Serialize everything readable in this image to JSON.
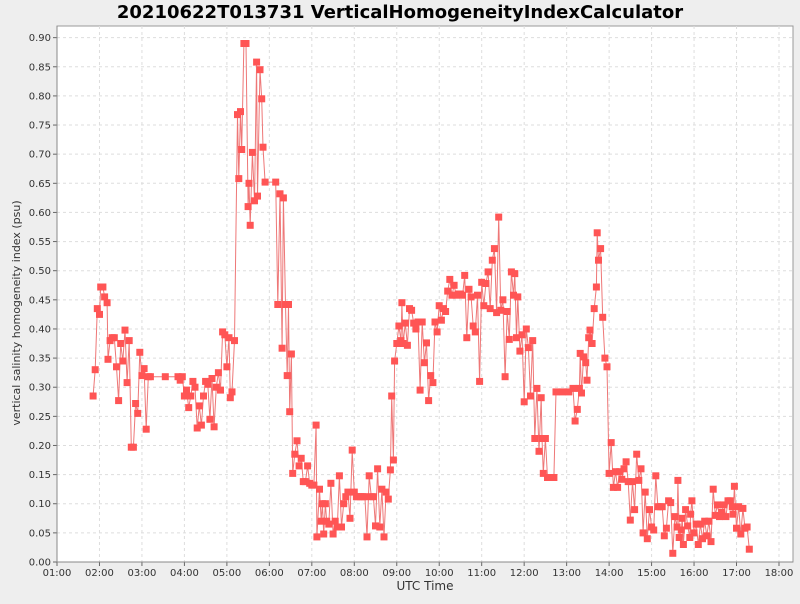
{
  "chart_data": {
    "type": "line",
    "title": "20210622T013731 VerticalHomogeneityIndexCalculator",
    "xlabel": "UTC Time",
    "ylabel": "vertical salinity homogeneity index (psu)",
    "xlim": [
      1.0,
      18.33
    ],
    "ylim": [
      0.0,
      0.92
    ],
    "grid": true,
    "x_ticks": [
      "01:00",
      "02:00",
      "03:00",
      "04:00",
      "05:00",
      "06:00",
      "07:00",
      "08:00",
      "09:00",
      "10:00",
      "11:00",
      "12:00",
      "13:00",
      "14:00",
      "15:00",
      "16:00",
      "17:00",
      "18:00"
    ],
    "y_ticks": [
      "0.00",
      "0.05",
      "0.10",
      "0.15",
      "0.20",
      "0.25",
      "0.30",
      "0.35",
      "0.40",
      "0.45",
      "0.50",
      "0.55",
      "0.60",
      "0.65",
      "0.70",
      "0.75",
      "0.80",
      "0.85",
      "0.90"
    ],
    "colors": {
      "series": "#ff5555",
      "line": "#ee7777",
      "grid": "#dddddd",
      "plot_bg": "#ffffff",
      "page_bg": "#eeeeee"
    },
    "series": [
      {
        "name": "",
        "x_unit": "hours UTC",
        "points": [
          [
            1.85,
            0.285
          ],
          [
            1.9,
            0.33
          ],
          [
            1.95,
            0.435
          ],
          [
            2.0,
            0.425
          ],
          [
            2.03,
            0.472
          ],
          [
            2.08,
            0.472
          ],
          [
            2.12,
            0.455
          ],
          [
            2.18,
            0.445
          ],
          [
            2.2,
            0.348
          ],
          [
            2.25,
            0.38
          ],
          [
            2.3,
            0.385
          ],
          [
            2.35,
            0.385
          ],
          [
            2.4,
            0.335
          ],
          [
            2.45,
            0.277
          ],
          [
            2.5,
            0.375
          ],
          [
            2.55,
            0.345
          ],
          [
            2.6,
            0.398
          ],
          [
            2.65,
            0.308
          ],
          [
            2.7,
            0.38
          ],
          [
            2.75,
            0.197
          ],
          [
            2.8,
            0.197
          ],
          [
            2.85,
            0.272
          ],
          [
            2.9,
            0.255
          ],
          [
            2.95,
            0.36
          ],
          [
            3.0,
            0.32
          ],
          [
            3.05,
            0.332
          ],
          [
            3.1,
            0.228
          ],
          [
            3.15,
            0.318
          ],
          [
            3.2,
            0.318
          ],
          [
            3.55,
            0.318
          ],
          [
            3.85,
            0.318
          ],
          [
            3.9,
            0.312
          ],
          [
            3.95,
            0.318
          ],
          [
            4.0,
            0.285
          ],
          [
            4.05,
            0.295
          ],
          [
            4.1,
            0.265
          ],
          [
            4.15,
            0.285
          ],
          [
            4.2,
            0.31
          ],
          [
            4.25,
            0.3
          ],
          [
            4.3,
            0.23
          ],
          [
            4.35,
            0.268
          ],
          [
            4.4,
            0.235
          ],
          [
            4.45,
            0.285
          ],
          [
            4.5,
            0.31
          ],
          [
            4.55,
            0.305
          ],
          [
            4.6,
            0.245
          ],
          [
            4.65,
            0.315
          ],
          [
            4.7,
            0.232
          ],
          [
            4.75,
            0.3
          ],
          [
            4.8,
            0.325
          ],
          [
            4.85,
            0.295
          ],
          [
            4.9,
            0.395
          ],
          [
            4.95,
            0.39
          ],
          [
            5.0,
            0.335
          ],
          [
            5.05,
            0.385
          ],
          [
            5.08,
            0.282
          ],
          [
            5.12,
            0.292
          ],
          [
            5.18,
            0.38
          ],
          [
            5.25,
            0.768
          ],
          [
            5.28,
            0.658
          ],
          [
            5.32,
            0.773
          ],
          [
            5.35,
            0.708
          ],
          [
            5.4,
            0.89
          ],
          [
            5.45,
            0.89
          ],
          [
            5.5,
            0.61
          ],
          [
            5.52,
            0.65
          ],
          [
            5.55,
            0.578
          ],
          [
            5.6,
            0.703
          ],
          [
            5.65,
            0.62
          ],
          [
            5.7,
            0.858
          ],
          [
            5.72,
            0.628
          ],
          [
            5.78,
            0.845
          ],
          [
            5.82,
            0.795
          ],
          [
            5.85,
            0.712
          ],
          [
            5.9,
            0.652
          ],
          [
            6.15,
            0.652
          ],
          [
            6.2,
            0.442
          ],
          [
            6.25,
            0.632
          ],
          [
            6.3,
            0.367
          ],
          [
            6.33,
            0.625
          ],
          [
            6.38,
            0.442
          ],
          [
            6.42,
            0.32
          ],
          [
            6.45,
            0.442
          ],
          [
            6.48,
            0.258
          ],
          [
            6.52,
            0.357
          ],
          [
            6.55,
            0.152
          ],
          [
            6.6,
            0.185
          ],
          [
            6.65,
            0.208
          ],
          [
            6.7,
            0.165
          ],
          [
            6.75,
            0.178
          ],
          [
            6.8,
            0.138
          ],
          [
            6.85,
            0.138
          ],
          [
            6.9,
            0.165
          ],
          [
            6.95,
            0.135
          ],
          [
            7.0,
            0.132
          ],
          [
            7.05,
            0.132
          ],
          [
            7.1,
            0.235
          ],
          [
            7.12,
            0.043
          ],
          [
            7.18,
            0.125
          ],
          [
            7.22,
            0.07
          ],
          [
            7.25,
            0.1
          ],
          [
            7.28,
            0.048
          ],
          [
            7.32,
            0.1
          ],
          [
            7.35,
            0.07
          ],
          [
            7.4,
            0.065
          ],
          [
            7.45,
            0.135
          ],
          [
            7.5,
            0.048
          ],
          [
            7.55,
            0.07
          ],
          [
            7.6,
            0.06
          ],
          [
            7.65,
            0.148
          ],
          [
            7.7,
            0.06
          ],
          [
            7.75,
            0.1
          ],
          [
            7.8,
            0.112
          ],
          [
            7.85,
            0.12
          ],
          [
            7.9,
            0.075
          ],
          [
            7.95,
            0.192
          ],
          [
            8.0,
            0.12
          ],
          [
            8.05,
            0.112
          ],
          [
            8.1,
            0.112
          ],
          [
            8.15,
            0.112
          ],
          [
            8.2,
            0.112
          ],
          [
            8.25,
            0.112
          ],
          [
            8.3,
            0.043
          ],
          [
            8.35,
            0.148
          ],
          [
            8.4,
            0.112
          ],
          [
            8.45,
            0.112
          ],
          [
            8.5,
            0.062
          ],
          [
            8.55,
            0.16
          ],
          [
            8.6,
            0.06
          ],
          [
            8.65,
            0.125
          ],
          [
            8.7,
            0.043
          ],
          [
            8.75,
            0.12
          ],
          [
            8.8,
            0.108
          ],
          [
            8.85,
            0.158
          ],
          [
            8.88,
            0.285
          ],
          [
            8.92,
            0.175
          ],
          [
            8.95,
            0.345
          ],
          [
            9.0,
            0.375
          ],
          [
            9.05,
            0.405
          ],
          [
            9.1,
            0.38
          ],
          [
            9.12,
            0.445
          ],
          [
            9.15,
            0.375
          ],
          [
            9.2,
            0.41
          ],
          [
            9.25,
            0.372
          ],
          [
            9.3,
            0.435
          ],
          [
            9.35,
            0.432
          ],
          [
            9.4,
            0.41
          ],
          [
            9.45,
            0.4
          ],
          [
            9.5,
            0.412
          ],
          [
            9.55,
            0.295
          ],
          [
            9.6,
            0.412
          ],
          [
            9.65,
            0.342
          ],
          [
            9.7,
            0.376
          ],
          [
            9.75,
            0.277
          ],
          [
            9.8,
            0.32
          ],
          [
            9.85,
            0.308
          ],
          [
            9.9,
            0.412
          ],
          [
            9.95,
            0.395
          ],
          [
            10.0,
            0.44
          ],
          [
            10.05,
            0.415
          ],
          [
            10.1,
            0.435
          ],
          [
            10.15,
            0.43
          ],
          [
            10.2,
            0.465
          ],
          [
            10.25,
            0.485
          ],
          [
            10.3,
            0.458
          ],
          [
            10.35,
            0.475
          ],
          [
            10.4,
            0.458
          ],
          [
            10.45,
            0.46
          ],
          [
            10.5,
            0.46
          ],
          [
            10.55,
            0.458
          ],
          [
            10.6,
            0.492
          ],
          [
            10.65,
            0.385
          ],
          [
            10.7,
            0.468
          ],
          [
            10.75,
            0.455
          ],
          [
            10.8,
            0.405
          ],
          [
            10.85,
            0.395
          ],
          [
            10.9,
            0.458
          ],
          [
            10.95,
            0.31
          ],
          [
            11.0,
            0.48
          ],
          [
            11.05,
            0.44
          ],
          [
            11.1,
            0.478
          ],
          [
            11.15,
            0.498
          ],
          [
            11.2,
            0.435
          ],
          [
            11.25,
            0.518
          ],
          [
            11.3,
            0.538
          ],
          [
            11.35,
            0.428
          ],
          [
            11.4,
            0.592
          ],
          [
            11.45,
            0.432
          ],
          [
            11.5,
            0.45
          ],
          [
            11.55,
            0.318
          ],
          [
            11.6,
            0.43
          ],
          [
            11.65,
            0.382
          ],
          [
            11.7,
            0.498
          ],
          [
            11.75,
            0.458
          ],
          [
            11.78,
            0.495
          ],
          [
            11.82,
            0.385
          ],
          [
            11.85,
            0.455
          ],
          [
            11.9,
            0.362
          ],
          [
            11.95,
            0.39
          ],
          [
            12.0,
            0.275
          ],
          [
            12.05,
            0.4
          ],
          [
            12.1,
            0.368
          ],
          [
            12.15,
            0.285
          ],
          [
            12.2,
            0.38
          ],
          [
            12.25,
            0.212
          ],
          [
            12.3,
            0.298
          ],
          [
            12.35,
            0.19
          ],
          [
            12.4,
            0.282
          ],
          [
            12.42,
            0.212
          ],
          [
            12.45,
            0.152
          ],
          [
            12.5,
            0.212
          ],
          [
            12.55,
            0.145
          ],
          [
            12.6,
            0.145
          ],
          [
            12.7,
            0.145
          ],
          [
            12.75,
            0.292
          ],
          [
            12.9,
            0.292
          ],
          [
            13.05,
            0.292
          ],
          [
            13.15,
            0.298
          ],
          [
            13.2,
            0.242
          ],
          [
            13.25,
            0.262
          ],
          [
            13.3,
            0.298
          ],
          [
            13.32,
            0.358
          ],
          [
            13.35,
            0.29
          ],
          [
            13.4,
            0.352
          ],
          [
            13.45,
            0.342
          ],
          [
            13.48,
            0.312
          ],
          [
            13.52,
            0.385
          ],
          [
            13.55,
            0.398
          ],
          [
            13.6,
            0.375
          ],
          [
            13.65,
            0.435
          ],
          [
            13.7,
            0.472
          ],
          [
            13.72,
            0.565
          ],
          [
            13.75,
            0.518
          ],
          [
            13.8,
            0.538
          ],
          [
            13.85,
            0.42
          ],
          [
            13.9,
            0.35
          ],
          [
            13.95,
            0.335
          ],
          [
            14.0,
            0.152
          ],
          [
            14.05,
            0.205
          ],
          [
            14.1,
            0.128
          ],
          [
            14.15,
            0.155
          ],
          [
            14.2,
            0.128
          ],
          [
            14.25,
            0.155
          ],
          [
            14.3,
            0.142
          ],
          [
            14.35,
            0.16
          ],
          [
            14.4,
            0.172
          ],
          [
            14.45,
            0.138
          ],
          [
            14.5,
            0.072
          ],
          [
            14.55,
            0.138
          ],
          [
            14.6,
            0.09
          ],
          [
            14.65,
            0.185
          ],
          [
            14.7,
            0.14
          ],
          [
            14.75,
            0.16
          ],
          [
            14.8,
            0.05
          ],
          [
            14.85,
            0.12
          ],
          [
            14.9,
            0.04
          ],
          [
            14.95,
            0.09
          ],
          [
            15.0,
            0.06
          ],
          [
            15.05,
            0.055
          ],
          [
            15.1,
            0.148
          ],
          [
            15.15,
            0.095
          ],
          [
            15.2,
            0.095
          ],
          [
            15.25,
            0.095
          ],
          [
            15.3,
            0.045
          ],
          [
            15.35,
            0.058
          ],
          [
            15.4,
            0.105
          ],
          [
            15.45,
            0.102
          ],
          [
            15.5,
            0.015
          ],
          [
            15.55,
            0.078
          ],
          [
            15.6,
            0.06
          ],
          [
            15.62,
            0.14
          ],
          [
            15.65,
            0.042
          ],
          [
            15.7,
            0.055
          ],
          [
            15.72,
            0.075
          ],
          [
            15.75,
            0.03
          ],
          [
            15.8,
            0.09
          ],
          [
            15.85,
            0.062
          ],
          [
            15.9,
            0.042
          ],
          [
            15.92,
            0.082
          ],
          [
            15.95,
            0.105
          ],
          [
            16.0,
            0.05
          ],
          [
            16.05,
            0.065
          ],
          [
            16.1,
            0.03
          ],
          [
            16.15,
            0.065
          ],
          [
            16.2,
            0.04
          ],
          [
            16.25,
            0.07
          ],
          [
            16.3,
            0.045
          ],
          [
            16.35,
            0.07
          ],
          [
            16.4,
            0.035
          ],
          [
            16.45,
            0.125
          ],
          [
            16.5,
            0.08
          ],
          [
            16.55,
            0.098
          ],
          [
            16.6,
            0.078
          ],
          [
            16.65,
            0.085
          ],
          [
            16.7,
            0.098
          ],
          [
            16.75,
            0.078
          ],
          [
            16.8,
            0.105
          ],
          [
            16.85,
            0.105
          ],
          [
            16.9,
            0.095
          ],
          [
            16.92,
            0.082
          ],
          [
            16.95,
            0.13
          ],
          [
            17.0,
            0.058
          ],
          [
            17.05,
            0.095
          ],
          [
            17.1,
            0.048
          ],
          [
            17.15,
            0.092
          ],
          [
            17.2,
            0.058
          ],
          [
            17.25,
            0.06
          ],
          [
            17.3,
            0.022
          ]
        ]
      }
    ]
  }
}
